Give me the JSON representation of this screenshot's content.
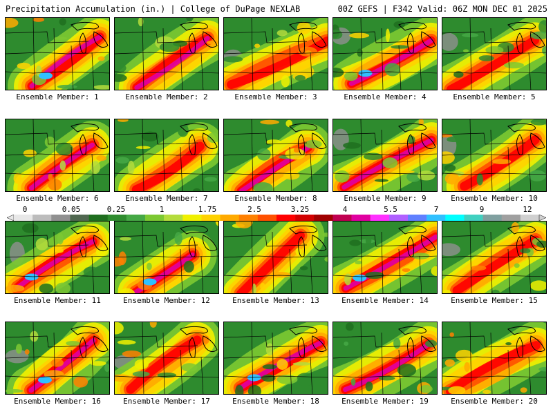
{
  "header": {
    "left_title": "Precipitation Accumulation (in.) | College of DuPage NEXLAB",
    "right_title": "00Z GEFS | F342 Valid: 06Z MON DEC 01 2025"
  },
  "panels": [
    {
      "label": "Ensemble Member: 1"
    },
    {
      "label": "Ensemble Member: 2"
    },
    {
      "label": "Ensemble Member: 3"
    },
    {
      "label": "Ensemble Member: 4"
    },
    {
      "label": "Ensemble Member: 5"
    },
    {
      "label": "Ensemble Member: 6"
    },
    {
      "label": "Ensemble Member: 7"
    },
    {
      "label": "Ensemble Member: 8"
    },
    {
      "label": "Ensemble Member: 9"
    },
    {
      "label": "Ensemble Member: 10"
    },
    {
      "label": "Ensemble Member: 11"
    },
    {
      "label": "Ensemble Member: 12"
    },
    {
      "label": "Ensemble Member: 13"
    },
    {
      "label": "Ensemble Member: 14"
    },
    {
      "label": "Ensemble Member: 15"
    },
    {
      "label": "Ensemble Member: 16"
    },
    {
      "label": "Ensemble Member: 17"
    },
    {
      "label": "Ensemble Member: 18"
    },
    {
      "label": "Ensemble Member: 19"
    },
    {
      "label": "Ensemble Member: 20"
    }
  ],
  "legend": {
    "labels": [
      "0",
      "0.05",
      "0.25",
      "1",
      "1.75",
      "2.5",
      "3.25",
      "4",
      "5.5",
      "7",
      "9",
      "12"
    ],
    "colors": [
      "#e8e8e8",
      "#bcbcbc",
      "#909090",
      "#506850",
      "#1f6e1f",
      "#2e8b2e",
      "#45a845",
      "#7cc832",
      "#b4dc3c",
      "#f0f000",
      "#ffd200",
      "#ffaa00",
      "#ff8000",
      "#ff5000",
      "#ff0000",
      "#d20000",
      "#a00000",
      "#c00050",
      "#e000a0",
      "#ff30ff",
      "#b060ff",
      "#6080ff",
      "#30c0ff",
      "#00ffff",
      "#40d0c0",
      "#80a0a0",
      "#a0a0a0",
      "#d0d0d0"
    ]
  }
}
